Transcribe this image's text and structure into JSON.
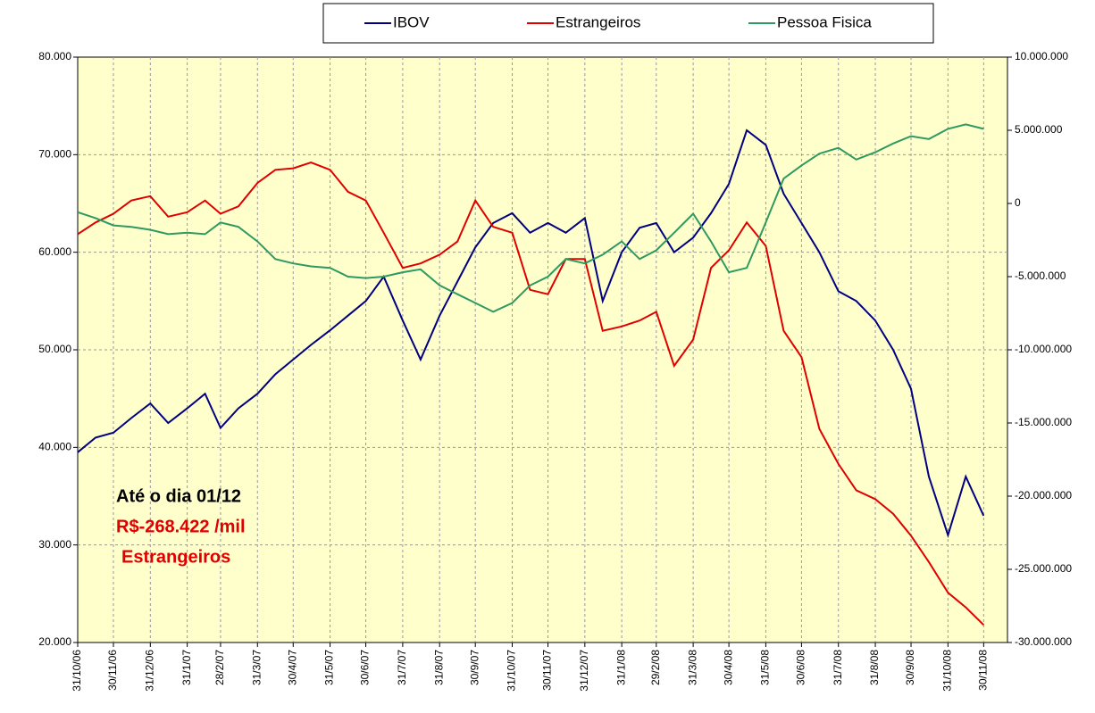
{
  "chart_data": {
    "type": "line",
    "x": [
      "31/10/06",
      "15/11/06",
      "30/11/06",
      "15/12/06",
      "31/12/06",
      "15/1/07",
      "31/1/07",
      "15/2/07",
      "28/2/07",
      "15/3/07",
      "31/3/07",
      "15/4/07",
      "30/4/07",
      "15/5/07",
      "31/5/07",
      "15/6/07",
      "30/6/07",
      "15/7/07",
      "31/7/07",
      "15/8/07",
      "31/8/07",
      "15/9/07",
      "30/9/07",
      "15/10/07",
      "31/10/07",
      "15/11/07",
      "30/11/07",
      "15/12/07",
      "31/12/07",
      "15/1/08",
      "31/1/08",
      "15/2/08",
      "29/2/08",
      "15/3/08",
      "31/3/08",
      "15/4/08",
      "30/4/08",
      "15/5/08",
      "31/5/08",
      "15/6/08",
      "30/6/08",
      "15/7/08",
      "31/7/08",
      "15/8/08",
      "31/8/08",
      "15/9/08",
      "30/9/08",
      "15/10/08",
      "31/10/08",
      "15/11/08",
      "30/11/08"
    ],
    "series": [
      {
        "name": "IBOV",
        "color": "#000080",
        "axis": "y",
        "values": [
          39500,
          41000,
          41500,
          43000,
          44500,
          42500,
          44000,
          45500,
          42000,
          44000,
          45500,
          47500,
          49000,
          50500,
          52000,
          53500,
          55000,
          57500,
          53000,
          49000,
          53500,
          57000,
          60500,
          63000,
          64000,
          62000,
          63000,
          62000,
          63500,
          55000,
          60000,
          62500,
          63000,
          60000,
          61500,
          64000,
          67000,
          72500,
          71000,
          66000,
          63000,
          60000,
          56000,
          55000,
          53000,
          50000,
          46000,
          37000,
          31000,
          37000,
          33000
        ]
      },
      {
        "name": "Estrangeiros",
        "color": "#e00000",
        "axis": "y2",
        "values": [
          -2100000,
          -1300000,
          -700000,
          200000,
          500000,
          -900000,
          -600000,
          200000,
          -700000,
          -200000,
          1400000,
          2300000,
          2400000,
          2800000,
          2300000,
          800000,
          200000,
          -2000000,
          -4400000,
          -4100000,
          -3500000,
          -2600000,
          200000,
          -1600000,
          -2000000,
          -5900000,
          -6200000,
          -3800000,
          -3800000,
          -8700000,
          -8400000,
          -8000000,
          -7400000,
          -11100000,
          -9300000,
          -4400000,
          -3200000,
          -1300000,
          -2900000,
          -8700000,
          -10500000,
          -15400000,
          -17800000,
          -19600000,
          -20200000,
          -21200000,
          -22700000,
          -24500000,
          -26600000,
          -27600000,
          -28800000
        ]
      },
      {
        "name": "Pessoa Fisica",
        "color": "#2e9960",
        "axis": "y2",
        "values": [
          -600000,
          -1000000,
          -1500000,
          -1600000,
          -1800000,
          -2100000,
          -2000000,
          -2100000,
          -1300000,
          -1600000,
          -2600000,
          -3800000,
          -4100000,
          -4300000,
          -4400000,
          -5000000,
          -5100000,
          -5000000,
          -4700000,
          -4500000,
          -5600000,
          -6200000,
          -6800000,
          -7400000,
          -6800000,
          -5600000,
          -5000000,
          -3800000,
          -4100000,
          -3500000,
          -2600000,
          -3800000,
          -3200000,
          -2000000,
          -700000,
          -2600000,
          -4700000,
          -4400000,
          -1300000,
          1700000,
          2600000,
          3400000,
          3800000,
          3000000,
          3500000,
          4100000,
          4600000,
          4400000,
          5100000,
          5400000,
          5100000
        ]
      }
    ],
    "xlim": [
      "31/10/06",
      "20/12/08"
    ],
    "xticks": [
      "31/10/06",
      "30/11/06",
      "31/12/06",
      "31/1/07",
      "28/2/07",
      "31/3/07",
      "30/4/07",
      "31/5/07",
      "30/6/07",
      "31/7/07",
      "31/8/07",
      "30/9/07",
      "31/10/07",
      "30/11/07",
      "31/12/07",
      "31/1/08",
      "29/2/08",
      "31/3/08",
      "30/4/08",
      "31/5/08",
      "30/6/08",
      "31/7/08",
      "31/8/08",
      "30/9/08",
      "31/10/08",
      "30/11/08"
    ],
    "ylim": [
      20000,
      80000
    ],
    "yticks": [
      {
        "value": 20000,
        "label": "20.000"
      },
      {
        "value": 30000,
        "label": "30.000"
      },
      {
        "value": 40000,
        "label": "40.000"
      },
      {
        "value": 50000,
        "label": "50.000"
      },
      {
        "value": 60000,
        "label": "60.000"
      },
      {
        "value": 70000,
        "label": "70.000"
      },
      {
        "value": 80000,
        "label": "80.000"
      }
    ],
    "y2lim": [
      -30000000,
      10000000
    ],
    "y2ticks": [
      {
        "value": -30000000,
        "label": "-30.000.000"
      },
      {
        "value": -25000000,
        "label": "-25.000.000"
      },
      {
        "value": -20000000,
        "label": "-20.000.000"
      },
      {
        "value": -15000000,
        "label": "-15.000.000"
      },
      {
        "value": -10000000,
        "label": "-10.000.000"
      },
      {
        "value": -5000000,
        "label": "-5.000.000"
      },
      0,
      {
        "value": 5000000,
        "label": "5.000.000"
      },
      {
        "value": 10000000,
        "label": "10.000.000"
      }
    ],
    "grid": true,
    "legend": "top",
    "annotations": [
      {
        "text": "Até o dia 01/12",
        "color": "#000000"
      },
      {
        "text": "R$-268.422 /mil",
        "color": "#e00000"
      },
      {
        "text": "Estrangeiros",
        "color": "#e00000"
      }
    ]
  }
}
